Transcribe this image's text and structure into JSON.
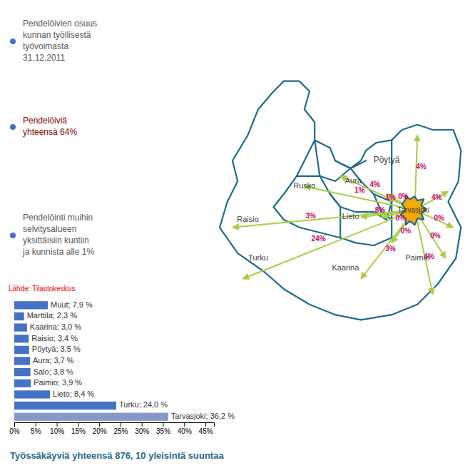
{
  "chart_data": {
    "type": "bar",
    "orientation": "horizontal",
    "title": "Työssäkäyviä yhteensä 876, 10 yleisintä suuntaa",
    "categories": [
      "Muut; 7,9 %",
      "Marttila; 2,3 %",
      "Kaarina; 3,0 %",
      "Raisio; 3,4 %",
      "Pöytyä; 3,5 %",
      "Aura; 3,7 %",
      "Salo; 3,8 %",
      "Paimio; 3,9 %",
      "Lieto; 8,4 %",
      "Turku; 24,0 %",
      "Tarvasjoki; 36,2 %"
    ],
    "values": [
      7.9,
      2.3,
      3.0,
      3.4,
      3.5,
      3.7,
      3.8,
      3.9,
      8.4,
      24.0,
      36.2
    ],
    "colors": [
      "#4472C4",
      "#4472C4",
      "#4472C4",
      "#4472C4",
      "#4472C4",
      "#4472C4",
      "#4472C4",
      "#4472C4",
      "#4472C4",
      "#4472C4",
      "#8898C8"
    ],
    "xlim": [
      0,
      47
    ],
    "xticks": [
      {
        "value": 0,
        "label": "0%"
      },
      {
        "value": 5,
        "label": "5%"
      },
      {
        "value": 10,
        "label": "10%"
      },
      {
        "value": 15,
        "label": "15%"
      },
      {
        "value": 20,
        "label": "20%"
      },
      {
        "value": 25,
        "label": "25%"
      },
      {
        "value": 30,
        "label": "30%"
      },
      {
        "value": 35,
        "label": "35%"
      },
      {
        "value": 40,
        "label": "40%"
      },
      {
        "value": 45,
        "label": "45%"
      }
    ],
    "grid": false,
    "annotations": [
      "Pendelöivien osuus\nkunnan työllisestä\ntyövoimasta\n31.12.2011",
      "Pendelöiviä\nyhteensä 64%",
      "Pendelöinti muihin\nselvitysalueen\nyksittäisiin kuntiin\nja kunnista alle 1%",
      "Lähde: Tilastokeskus",
      "Pöytyä",
      "Rusko",
      "Aura",
      "Tarvasjoki",
      "Raisio",
      "Lieto",
      "Paimio",
      "Turku",
      "Kaarina",
      "24%",
      "3%",
      "1%",
      "4%",
      "1%",
      "4%",
      "4%",
      "0%",
      "0%",
      "4%",
      "8%",
      "0%",
      "0%",
      "3%",
      "0%"
    ]
  }
}
